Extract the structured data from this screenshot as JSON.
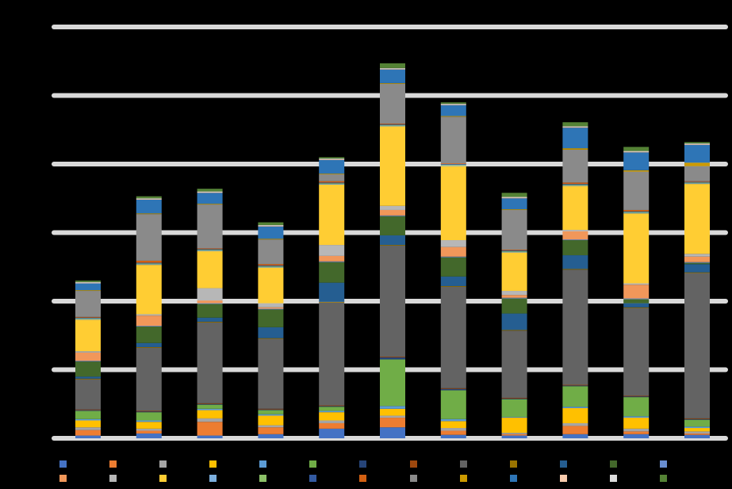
{
  "chart_data": {
    "type": "bar",
    "stacked": true,
    "title": "",
    "xlabel": "",
    "ylabel": "",
    "ylim": [
      0,
      6
    ],
    "grid": true,
    "legend_position": "bottom",
    "background": "#000000",
    "gridline_color": "#d9d9d9",
    "categories": [
      "",
      "",
      "",
      "",
      "",
      "",
      "",
      "",
      "",
      "",
      ""
    ],
    "series": [
      {
        "color": "#4472c4",
        "values": [
          0.04,
          0.07,
          0.04,
          0.06,
          0.14,
          0.16,
          0.05,
          0.04,
          0.06,
          0.06,
          0.05
        ]
      },
      {
        "color": "#ed7d31",
        "values": [
          0.08,
          0.04,
          0.2,
          0.1,
          0.08,
          0.14,
          0.06,
          0.02,
          0.12,
          0.04,
          0.02
        ]
      },
      {
        "color": "#a5a5a5",
        "values": [
          0.04,
          0.03,
          0.05,
          0.03,
          0.04,
          0.03,
          0.04,
          0.02,
          0.04,
          0.04,
          0.03
        ]
      },
      {
        "color": "#ffc000",
        "values": [
          0.1,
          0.1,
          0.12,
          0.14,
          0.12,
          0.1,
          0.1,
          0.22,
          0.22,
          0.16,
          0.05
        ]
      },
      {
        "color": "#5b9bd5",
        "values": [
          0.02,
          0.02,
          0.02,
          0.02,
          0.02,
          0.04,
          0.03,
          0.01,
          0.02,
          0.02,
          0.02
        ]
      },
      {
        "color": "#70ad47",
        "values": [
          0.12,
          0.12,
          0.06,
          0.06,
          0.06,
          0.68,
          0.42,
          0.26,
          0.3,
          0.28,
          0.1
        ]
      },
      {
        "color": "#264478",
        "values": [
          0.01,
          0.01,
          0.01,
          0.01,
          0.01,
          0.03,
          0.02,
          0.01,
          0.01,
          0.01,
          0.01
        ]
      },
      {
        "color": "#9e480e",
        "values": [
          0.01,
          0.01,
          0.01,
          0.01,
          0.01,
          0.01,
          0.01,
          0.01,
          0.01,
          0.01,
          0.01
        ]
      },
      {
        "color": "#636363",
        "values": [
          0.44,
          0.92,
          1.18,
          1.02,
          1.5,
          1.62,
          1.48,
          0.98,
          1.68,
          1.28,
          2.12
        ]
      },
      {
        "color": "#997300",
        "values": [
          0.01,
          0.01,
          0.01,
          0.01,
          0.01,
          0.01,
          0.01,
          0.01,
          0.01,
          0.01,
          0.01
        ]
      },
      {
        "color": "#255e91",
        "values": [
          0.03,
          0.06,
          0.06,
          0.16,
          0.28,
          0.14,
          0.14,
          0.24,
          0.2,
          0.06,
          0.12
        ]
      },
      {
        "color": "#43682b",
        "values": [
          0.22,
          0.24,
          0.2,
          0.26,
          0.3,
          0.28,
          0.28,
          0.22,
          0.22,
          0.06,
          0.02
        ]
      },
      {
        "color": "#698ed0",
        "values": [
          0.01,
          0.01,
          0.01,
          0.01,
          0.01,
          0.01,
          0.01,
          0.01,
          0.01,
          0.01,
          0.01
        ]
      },
      {
        "color": "#f1975a",
        "values": [
          0.12,
          0.15,
          0.04,
          0.02,
          0.08,
          0.08,
          0.14,
          0.04,
          0.12,
          0.2,
          0.08
        ]
      },
      {
        "color": "#b7b7b7",
        "values": [
          0.02,
          0.02,
          0.18,
          0.06,
          0.16,
          0.06,
          0.1,
          0.06,
          0.02,
          0.02,
          0.04
        ]
      },
      {
        "color": "#ffcd33",
        "values": [
          0.46,
          0.72,
          0.54,
          0.52,
          0.88,
          1.16,
          1.08,
          0.56,
          0.64,
          1.02,
          1.02
        ]
      },
      {
        "color": "#7cafdd",
        "values": [
          0.01,
          0.01,
          0.01,
          0.01,
          0.01,
          0.01,
          0.01,
          0.01,
          0.01,
          0.01,
          0.01
        ]
      },
      {
        "color": "#8cc168",
        "values": [
          0.01,
          0.01,
          0.01,
          0.01,
          0.01,
          0.01,
          0.01,
          0.01,
          0.01,
          0.01,
          0.01
        ]
      },
      {
        "color": "#335aa1",
        "values": [
          0.01,
          0.01,
          0.01,
          0.01,
          0.01,
          0.01,
          0.01,
          0.01,
          0.01,
          0.01,
          0.01
        ]
      },
      {
        "color": "#d26012",
        "values": [
          0.01,
          0.03,
          0.01,
          0.02,
          0.02,
          0.01,
          0.01,
          0.01,
          0.02,
          0.02,
          0.01
        ]
      },
      {
        "color": "#8a8a8a",
        "values": [
          0.38,
          0.68,
          0.64,
          0.36,
          0.1,
          0.58,
          0.68,
          0.58,
          0.48,
          0.56,
          0.22
        ]
      },
      {
        "color": "#cc9a00",
        "values": [
          0.01,
          0.01,
          0.01,
          0.01,
          0.01,
          0.01,
          0.01,
          0.01,
          0.02,
          0.02,
          0.05
        ]
      },
      {
        "color": "#2e75b6",
        "values": [
          0.1,
          0.2,
          0.16,
          0.18,
          0.2,
          0.2,
          0.16,
          0.16,
          0.3,
          0.26,
          0.26
        ]
      },
      {
        "color": "#f8cbad",
        "values": [
          0.01,
          0.01,
          0.01,
          0.01,
          0.01,
          0.01,
          0.01,
          0.01,
          0.01,
          0.01,
          0.01
        ]
      },
      {
        "color": "#dbdbdb",
        "values": [
          0.01,
          0.01,
          0.01,
          0.01,
          0.01,
          0.01,
          0.01,
          0.01,
          0.01,
          0.01,
          0.01
        ]
      },
      {
        "color": "#548235",
        "values": [
          0.02,
          0.03,
          0.04,
          0.04,
          0.02,
          0.07,
          0.02,
          0.06,
          0.06,
          0.06,
          0.02
        ]
      }
    ]
  }
}
